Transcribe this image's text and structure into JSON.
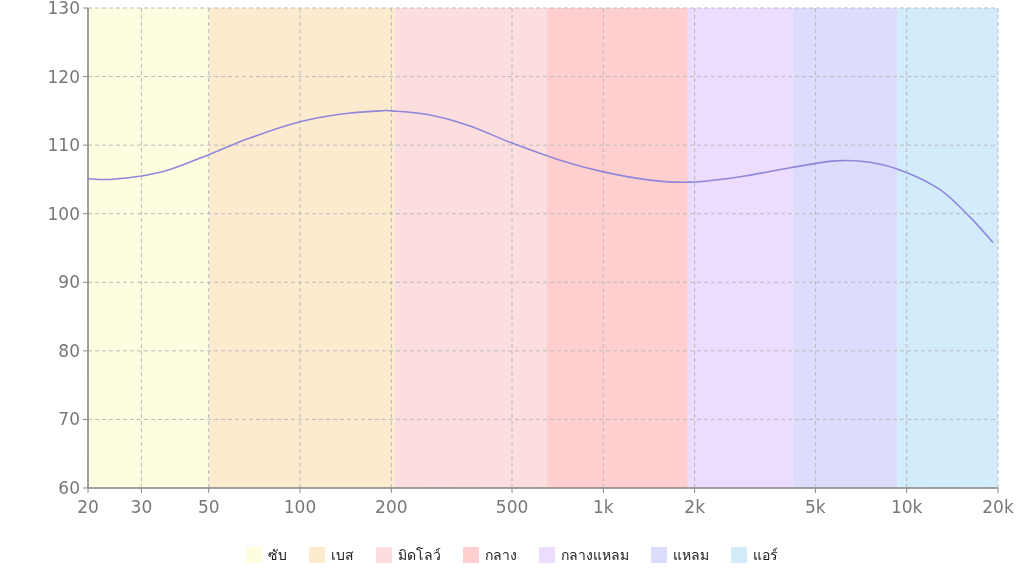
{
  "chart_data": {
    "type": "line",
    "log": "x",
    "grid": true,
    "legend": "bottom",
    "x": [
      20,
      23.6,
      30,
      37,
      50,
      68,
      100,
      135,
      184,
      200,
      269,
      363,
      500,
      720,
      1000,
      1426,
      1932,
      2825,
      4130,
      5808,
      7570,
      9880,
      12890,
      16180,
      19260
    ],
    "series": [
      {
        "color": "#8f87da",
        "values": [
          105.1,
          105,
          105.5,
          106.4,
          108.6,
          111,
          113.4,
          114.5,
          115,
          115,
          114.4,
          112.8,
          110.3,
          107.8,
          106.1,
          104.9,
          104.6,
          105.4,
          106.7,
          107.7,
          107.5,
          106.1,
          103.5,
          99.5,
          95.8
        ]
      }
    ],
    "xlim": [
      20,
      20000
    ],
    "ylim": [
      60,
      130
    ],
    "xticks": [
      20,
      30,
      50,
      100,
      200,
      500,
      {
        "value": 1000,
        "label": "1k"
      },
      {
        "value": 2000,
        "label": "2k"
      },
      {
        "value": 5000,
        "label": "5k"
      },
      {
        "value": 10000,
        "label": "10k"
      },
      {
        "value": 20000,
        "label": "20k"
      }
    ],
    "yticks": [
      60,
      70,
      80,
      90,
      100,
      110,
      120,
      130
    ],
    "bands": [
      {
        "axis": "x",
        "from": 20,
        "to": 50,
        "label": "ซับ",
        "color": "#fffde0"
      },
      {
        "axis": "x",
        "from": 50,
        "to": 205,
        "label": "เบส",
        "color": "#fdebd0"
      },
      {
        "axis": "x",
        "from": 205,
        "to": 650,
        "label": "มิดโลว์",
        "color": "#fddede"
      },
      {
        "axis": "x",
        "from": 650,
        "to": 1900,
        "label": "กลาง",
        "color": "#ffcfcf"
      },
      {
        "axis": "x",
        "from": 1900,
        "to": 4200,
        "label": "กลางแหลม",
        "color": "#ecdcfd"
      },
      {
        "axis": "x",
        "from": 4200,
        "to": 9300,
        "label": "แหลม",
        "color": "#dcdcfc"
      },
      {
        "axis": "x",
        "from": 9300,
        "to": 20000,
        "label": "แอร์",
        "color": "#d2ecfc"
      }
    ]
  }
}
